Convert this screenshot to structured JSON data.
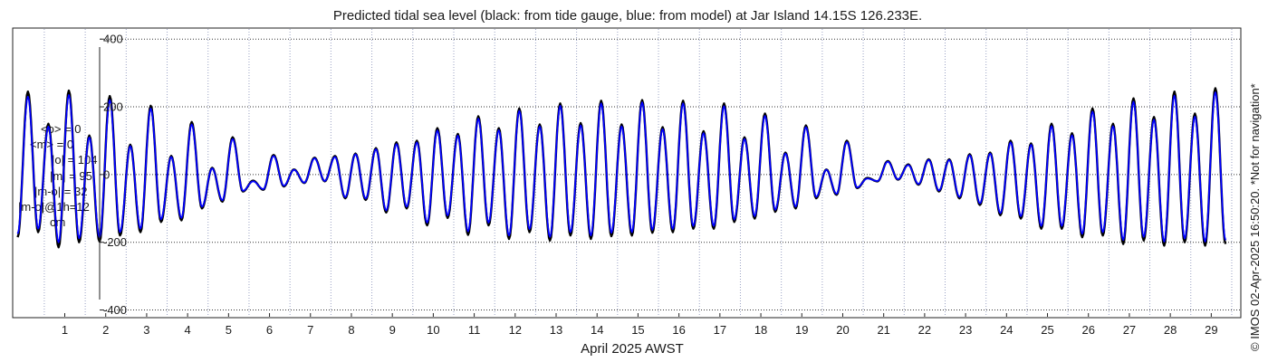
{
  "stats": {
    "lines": [
      "<o> = 0",
      "<m> = 0",
      "|o| = 104",
      "|m| = 95",
      "|m-o| = 32",
      "|m-o|@1h=12",
      "cm"
    ]
  },
  "copyright": "© IMOS 02-Apr-2025 16:50:20. *Not for navigation*",
  "colors": {
    "gauge": "#000000",
    "model": "#0000ff",
    "grid": "#333333"
  },
  "chart_data": {
    "type": "line",
    "title": "Predicted tidal sea level (black: from tide gauge, blue: from model) at Jar Island 14.15S 126.233E.",
    "xlabel": "April 2025 AWST",
    "ylabel": "",
    "xlim": [
      0.25,
      30.2
    ],
    "ylim": [
      -420,
      430
    ],
    "x_ticks": [
      "1",
      "2",
      "3",
      "4",
      "5",
      "6",
      "7",
      "8",
      "9",
      "10",
      "11",
      "12",
      "13",
      "14",
      "15",
      "16",
      "17",
      "18",
      "19",
      "20",
      "21",
      "22",
      "23",
      "24",
      "25",
      "26",
      "27",
      "28",
      "29"
    ],
    "y_ticks": [
      400,
      200,
      0,
      -200,
      -400
    ],
    "grid": "dotted",
    "series": [
      {
        "name": "black: from tide gauge",
        "color": "#000000",
        "highs": [
          [
            0.6,
            245
          ],
          [
            1.6,
            248
          ],
          [
            2.6,
            232
          ],
          [
            3.6,
            203
          ],
          [
            4.6,
            155
          ],
          [
            5.6,
            110
          ],
          [
            6.6,
            58
          ],
          [
            7.6,
            50
          ],
          [
            8.6,
            62
          ],
          [
            9.6,
            95
          ],
          [
            10.6,
            137
          ],
          [
            11.6,
            172
          ],
          [
            12.6,
            195
          ],
          [
            13.6,
            210
          ],
          [
            14.6,
            218
          ],
          [
            15.6,
            220
          ],
          [
            16.6,
            218
          ],
          [
            17.6,
            210
          ],
          [
            18.6,
            180
          ],
          [
            19.6,
            145
          ],
          [
            20.6,
            100
          ],
          [
            21.6,
            40
          ],
          [
            22.6,
            45
          ],
          [
            23.6,
            60
          ],
          [
            24.6,
            100
          ],
          [
            25.6,
            150
          ],
          [
            26.6,
            195
          ],
          [
            27.6,
            225
          ],
          [
            28.6,
            245
          ],
          [
            29.6,
            255
          ]
        ],
        "secondary_highs": [
          [
            1.1,
            150
          ],
          [
            2.1,
            115
          ],
          [
            3.1,
            88
          ],
          [
            4.1,
            55
          ],
          [
            5.1,
            20
          ],
          [
            6.1,
            -18
          ],
          [
            7.1,
            15
          ],
          [
            8.1,
            55
          ],
          [
            9.1,
            78
          ],
          [
            10.1,
            100
          ],
          [
            11.1,
            120
          ],
          [
            12.1,
            137
          ],
          [
            13.1,
            148
          ],
          [
            14.1,
            152
          ],
          [
            15.1,
            148
          ],
          [
            16.1,
            140
          ],
          [
            17.1,
            128
          ],
          [
            18.1,
            110
          ],
          [
            19.1,
            65
          ],
          [
            20.1,
            15
          ],
          [
            21.1,
            -10
          ],
          [
            22.1,
            30
          ],
          [
            23.1,
            45
          ],
          [
            24.1,
            65
          ],
          [
            25.1,
            92
          ],
          [
            26.1,
            122
          ],
          [
            27.1,
            150
          ],
          [
            28.1,
            170
          ],
          [
            29.1,
            180
          ]
        ],
        "lows": [
          [
            0.35,
            -185
          ],
          [
            1.35,
            -215
          ],
          [
            2.35,
            -198
          ],
          [
            3.35,
            -170
          ],
          [
            4.35,
            -135
          ],
          [
            5.35,
            -80
          ],
          [
            6.35,
            -45
          ],
          [
            7.35,
            -25
          ],
          [
            8.35,
            -70
          ],
          [
            9.35,
            -112
          ],
          [
            10.35,
            -150
          ],
          [
            11.35,
            -178
          ],
          [
            12.35,
            -190
          ],
          [
            13.35,
            -195
          ],
          [
            14.35,
            -190
          ],
          [
            15.35,
            -180
          ],
          [
            16.35,
            -170
          ],
          [
            17.35,
            -160
          ],
          [
            18.35,
            -130
          ],
          [
            19.35,
            -100
          ],
          [
            20.35,
            -60
          ],
          [
            21.35,
            -20
          ],
          [
            22.35,
            -30
          ],
          [
            23.35,
            -70
          ],
          [
            24.35,
            -120
          ],
          [
            25.35,
            -160
          ],
          [
            26.35,
            -185
          ],
          [
            27.35,
            -205
          ],
          [
            28.35,
            -210
          ],
          [
            29.35,
            -210
          ]
        ],
        "secondary_lows": [
          [
            0.85,
            -170
          ],
          [
            1.85,
            -200
          ],
          [
            2.85,
            -180
          ],
          [
            3.85,
            -140
          ],
          [
            4.85,
            -100
          ],
          [
            5.85,
            -50
          ],
          [
            6.85,
            -35
          ],
          [
            7.85,
            -20
          ],
          [
            8.85,
            -75
          ],
          [
            9.85,
            -100
          ],
          [
            10.85,
            -128
          ],
          [
            11.85,
            -150
          ],
          [
            12.85,
            -170
          ],
          [
            13.85,
            -180
          ],
          [
            14.85,
            -182
          ],
          [
            15.85,
            -172
          ],
          [
            16.85,
            -160
          ],
          [
            17.85,
            -140
          ],
          [
            18.85,
            -110
          ],
          [
            19.85,
            -70
          ],
          [
            20.85,
            -40
          ],
          [
            21.85,
            -15
          ],
          [
            22.85,
            -50
          ],
          [
            23.85,
            -90
          ],
          [
            24.85,
            -130
          ],
          [
            25.85,
            -160
          ],
          [
            26.85,
            -180
          ],
          [
            27.85,
            -195
          ],
          [
            28.85,
            -200
          ],
          [
            29.85,
            -205
          ]
        ]
      },
      {
        "name": "blue: from model",
        "color": "#0000ff",
        "highs": [
          [
            0.6,
            230
          ],
          [
            1.6,
            235
          ],
          [
            2.6,
            220
          ],
          [
            3.6,
            195
          ],
          [
            4.6,
            148
          ],
          [
            5.6,
            105
          ],
          [
            6.6,
            55
          ],
          [
            7.6,
            48
          ],
          [
            8.6,
            60
          ],
          [
            9.6,
            90
          ],
          [
            10.6,
            130
          ],
          [
            11.6,
            165
          ],
          [
            12.6,
            188
          ],
          [
            13.6,
            203
          ],
          [
            14.6,
            210
          ],
          [
            15.6,
            213
          ],
          [
            16.6,
            210
          ],
          [
            17.6,
            202
          ],
          [
            18.6,
            173
          ],
          [
            19.6,
            140
          ],
          [
            20.6,
            96
          ],
          [
            21.6,
            38
          ],
          [
            22.6,
            43
          ],
          [
            23.6,
            57
          ],
          [
            24.6,
            95
          ],
          [
            25.6,
            143
          ],
          [
            26.6,
            186
          ],
          [
            27.6,
            215
          ],
          [
            28.6,
            233
          ],
          [
            29.6,
            243
          ]
        ],
        "secondary_highs": [
          [
            1.1,
            142
          ],
          [
            2.1,
            110
          ],
          [
            3.1,
            84
          ],
          [
            4.1,
            52
          ],
          [
            5.1,
            18
          ],
          [
            6.1,
            -20
          ],
          [
            7.1,
            14
          ],
          [
            8.1,
            52
          ],
          [
            9.1,
            75
          ],
          [
            10.1,
            95
          ],
          [
            11.1,
            115
          ],
          [
            12.1,
            131
          ],
          [
            13.1,
            142
          ],
          [
            14.1,
            145
          ],
          [
            15.1,
            142
          ],
          [
            16.1,
            134
          ],
          [
            17.1,
            122
          ],
          [
            18.1,
            105
          ],
          [
            19.1,
            62
          ],
          [
            20.1,
            14
          ],
          [
            21.1,
            -12
          ],
          [
            22.1,
            28
          ],
          [
            23.1,
            43
          ],
          [
            24.1,
            62
          ],
          [
            25.1,
            88
          ],
          [
            26.1,
            116
          ],
          [
            27.1,
            143
          ],
          [
            28.1,
            162
          ],
          [
            29.1,
            171
          ]
        ],
        "lows": [
          [
            0.35,
            -175
          ],
          [
            1.35,
            -200
          ],
          [
            2.35,
            -185
          ],
          [
            3.35,
            -160
          ],
          [
            4.35,
            -128
          ],
          [
            5.35,
            -76
          ],
          [
            6.35,
            -43
          ],
          [
            7.35,
            -24
          ],
          [
            8.35,
            -67
          ],
          [
            9.35,
            -106
          ],
          [
            10.35,
            -142
          ],
          [
            11.35,
            -168
          ],
          [
            12.35,
            -180
          ],
          [
            13.35,
            -184
          ],
          [
            14.35,
            -180
          ],
          [
            15.35,
            -170
          ],
          [
            16.35,
            -161
          ],
          [
            17.35,
            -152
          ],
          [
            18.35,
            -123
          ],
          [
            19.35,
            -95
          ],
          [
            20.35,
            -57
          ],
          [
            21.35,
            -19
          ],
          [
            22.35,
            -28
          ],
          [
            23.35,
            -66
          ],
          [
            24.35,
            -114
          ],
          [
            25.35,
            -152
          ],
          [
            26.35,
            -175
          ],
          [
            27.35,
            -193
          ],
          [
            28.35,
            -198
          ],
          [
            29.35,
            -198
          ]
        ],
        "secondary_lows": [
          [
            0.85,
            -160
          ],
          [
            1.85,
            -188
          ],
          [
            2.85,
            -170
          ],
          [
            3.85,
            -132
          ],
          [
            4.85,
            -95
          ],
          [
            5.85,
            -48
          ],
          [
            6.85,
            -33
          ],
          [
            7.85,
            -19
          ],
          [
            8.85,
            -71
          ],
          [
            9.85,
            -95
          ],
          [
            10.85,
            -121
          ],
          [
            11.85,
            -142
          ],
          [
            12.85,
            -161
          ],
          [
            13.85,
            -170
          ],
          [
            14.85,
            -172
          ],
          [
            15.85,
            -163
          ],
          [
            16.85,
            -152
          ],
          [
            17.85,
            -133
          ],
          [
            18.85,
            -104
          ],
          [
            19.85,
            -66
          ],
          [
            20.85,
            -38
          ],
          [
            21.85,
            -14
          ],
          [
            22.85,
            -47
          ],
          [
            23.85,
            -85
          ],
          [
            24.85,
            -123
          ],
          [
            25.85,
            -152
          ],
          [
            26.85,
            -170
          ],
          [
            27.85,
            -184
          ],
          [
            28.85,
            -189
          ],
          [
            29.85,
            -194
          ]
        ]
      }
    ]
  }
}
